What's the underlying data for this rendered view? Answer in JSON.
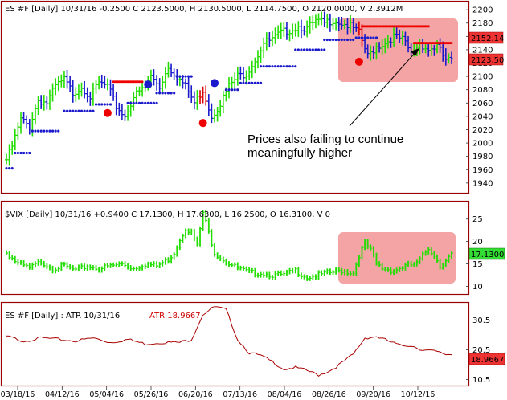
{
  "colors": {
    "price_up": "#22dd00",
    "price_down": "#1a1acc",
    "price_red": "#dd0000",
    "vix_line": "#22dd00",
    "atr_line": "#aa0000",
    "resistance": "#ee0000",
    "support_dots": "#1a1acc",
    "highlight": "#f4a4a4",
    "frame": "#990000",
    "tag_fill": "#ee3333",
    "tag_vix": "#33dd33"
  },
  "annotation": {
    "line1": "Prices also failing to continue",
    "line2": "meaningfully higher"
  },
  "chart_data": [
    {
      "type": "ohlc",
      "title": "ES #F [Daily] 10/31/16 -0.2500 C 2123.5000, H 2130.5000, L 2114.7500, O 2120.0000, V 2.3912M",
      "y_ticks": [
        "2200",
        "2180",
        "2160",
        "2140",
        "2120",
        "2100",
        "2080",
        "2060",
        "2040",
        "2020",
        "2000",
        "1980",
        "1960",
        "1940"
      ],
      "ylim": [
        1935,
        2205
      ],
      "last_price_tags": [
        "2152.14",
        "2123.50"
      ],
      "x": [
        0,
        2,
        5,
        8,
        11,
        14,
        17,
        20,
        23,
        26,
        29,
        32,
        35,
        38,
        41,
        44,
        47,
        50,
        53,
        56,
        59,
        62,
        65,
        68,
        71,
        74,
        77,
        80,
        83,
        86,
        89,
        92,
        95,
        98,
        101,
        104,
        107,
        110,
        113,
        116,
        119,
        122,
        125,
        128,
        131,
        134,
        137,
        140,
        143,
        146,
        149,
        152,
        154
      ],
      "close": [
        1975,
        1995,
        2035,
        2025,
        2065,
        2060,
        2085,
        2095,
        2075,
        2085,
        2070,
        2090,
        2085,
        2055,
        2040,
        2070,
        2080,
        2100,
        2085,
        2115,
        2100,
        2085,
        2060,
        2080,
        2040,
        2060,
        2085,
        2100,
        2105,
        2125,
        2150,
        2155,
        2165,
        2170,
        2175,
        2172,
        2182,
        2180,
        2185,
        2180,
        2175,
        2165,
        2130,
        2145,
        2150,
        2160,
        2155,
        2135,
        2150,
        2140,
        2145,
        2125,
        2123.5
      ],
      "resistance_segments": [
        {
          "from": 37,
          "to": 47,
          "value": 2092
        },
        {
          "from": 123,
          "to": 146,
          "value": 2175
        },
        {
          "from": 141,
          "to": 154,
          "value": 2150
        }
      ],
      "support_dots": [
        {
          "from": 0,
          "to": 2,
          "value": 1962
        },
        {
          "from": 3,
          "to": 8,
          "value": 1985
        },
        {
          "from": 9,
          "to": 18,
          "value": 2018
        },
        {
          "from": 20,
          "to": 30,
          "value": 2048
        },
        {
          "from": 31,
          "to": 36,
          "value": 2058
        },
        {
          "from": 42,
          "to": 52,
          "value": 2060
        },
        {
          "from": 52,
          "to": 58,
          "value": 2075
        },
        {
          "from": 59,
          "to": 64,
          "value": 2100
        },
        {
          "from": 76,
          "to": 80,
          "value": 2080
        },
        {
          "from": 81,
          "to": 88,
          "value": 2090
        },
        {
          "from": 88,
          "to": 100,
          "value": 2115
        },
        {
          "from": 100,
          "to": 110,
          "value": 2140
        },
        {
          "from": 110,
          "to": 120,
          "value": 2155
        },
        {
          "from": 121,
          "to": 128,
          "value": 2158
        }
      ],
      "signal_dots": [
        {
          "x": 35,
          "value": 2045,
          "color": "#ee0000"
        },
        {
          "x": 49,
          "value": 2088,
          "color": "#1a1acc"
        },
        {
          "x": 68,
          "value": 2030,
          "color": "#ee0000"
        },
        {
          "x": 72,
          "value": 2090,
          "color": "#1a1acc"
        },
        {
          "x": 122,
          "value": 2122,
          "color": "#ee0000"
        }
      ]
    },
    {
      "type": "line",
      "title": "$VIX [Daily] 10/31/16 +0.9400 C 17.1300, H 17.6300, L 16.2500, O 16.3100, V 0",
      "y_ticks": [
        "25",
        "20",
        "15",
        "10"
      ],
      "ylim": [
        9,
        28
      ],
      "last_value_tag": "17.1300",
      "x": [
        0,
        4,
        8,
        12,
        16,
        20,
        24,
        28,
        32,
        36,
        40,
        44,
        48,
        52,
        56,
        58,
        60,
        62,
        64,
        66,
        68,
        70,
        72,
        76,
        80,
        84,
        88,
        92,
        96,
        100,
        104,
        108,
        112,
        116,
        120,
        122,
        124,
        126,
        128,
        130,
        134,
        138,
        142,
        146,
        148,
        150,
        152,
        154
      ],
      "values": [
        17.5,
        15.0,
        14.0,
        15.5,
        14.0,
        14.5,
        13.5,
        14.5,
        14.0,
        14.5,
        15.0,
        14.0,
        15.0,
        14.5,
        16.0,
        17.5,
        20.5,
        23.0,
        22.0,
        19.0,
        26.5,
        22.0,
        17.5,
        15.5,
        14.0,
        13.0,
        13.0,
        12.5,
        12.5,
        13.5,
        12.0,
        12.5,
        13.0,
        13.5,
        13.0,
        17.0,
        19.5,
        18.0,
        15.0,
        14.0,
        13.5,
        14.5,
        15.0,
        18.5,
        17.0,
        14.5,
        16.0,
        17.13
      ],
      "highlight_x": [
        121,
        154
      ],
      "highlight_y": [
        12,
        21.5
      ]
    },
    {
      "type": "line",
      "title": "ES #F [Daily] : ATR 10/31/16",
      "series_name": "ATR 18.9667",
      "y_ticks": [
        "30.5",
        "20.5",
        "10.5"
      ],
      "ylim": [
        9,
        35
      ],
      "last_value_tag": "18.9667",
      "x": [
        0,
        6,
        12,
        18,
        24,
        30,
        36,
        42,
        48,
        54,
        60,
        64,
        68,
        72,
        76,
        80,
        84,
        88,
        92,
        96,
        100,
        104,
        108,
        112,
        116,
        120,
        124,
        128,
        132,
        136,
        140,
        144,
        148,
        152,
        154
      ],
      "values": [
        25.0,
        23.5,
        24.5,
        24.0,
        23.5,
        24.5,
        23.0,
        24.0,
        22.5,
        23.0,
        23.0,
        24.0,
        32.5,
        35.0,
        34.0,
        24.0,
        19.5,
        18.5,
        16.5,
        14.0,
        14.5,
        13.5,
        12.0,
        13.5,
        16.0,
        19.0,
        24.5,
        25.0,
        23.5,
        22.0,
        22.0,
        20.5,
        20.0,
        19.0,
        18.97
      ]
    }
  ],
  "x_axis_labels": [
    "03/18/16",
    "04/12/16",
    "05/04/16",
    "05/26/16",
    "06/20/16",
    "07/13/16",
    "08/04/16",
    "08/26/16",
    "09/20/16",
    "10/12/16"
  ]
}
